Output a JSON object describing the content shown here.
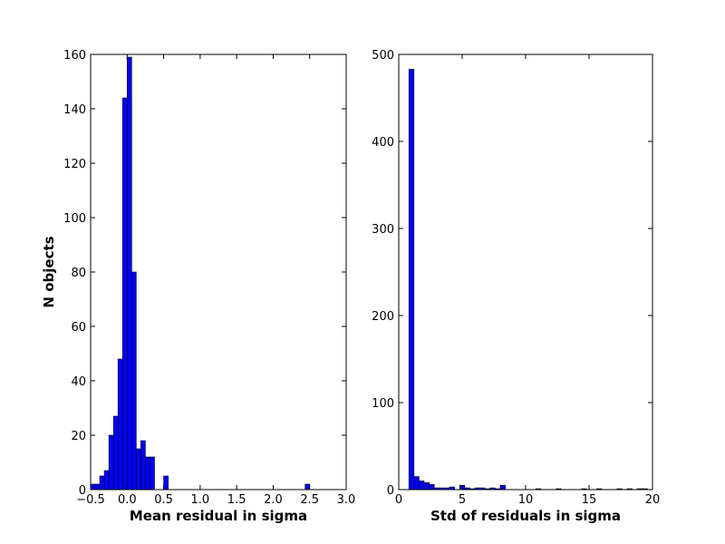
{
  "chart_data": [
    {
      "type": "bar",
      "title": "",
      "xlabel": "Mean residual in sigma",
      "ylabel": "N objects",
      "xlim": [
        -0.5,
        3.0
      ],
      "ylim": [
        0,
        160
      ],
      "xticks": [
        -0.5,
        0.0,
        0.5,
        1.0,
        1.5,
        2.0,
        2.5,
        3.0
      ],
      "xtick_labels": [
        "−0.5",
        "0.0",
        "0.5",
        "1.0",
        "1.5",
        "2.0",
        "2.5",
        "3.0"
      ],
      "yticks": [
        0,
        20,
        40,
        60,
        80,
        100,
        120,
        140,
        160
      ],
      "ytick_labels": [
        "0",
        "20",
        "40",
        "60",
        "80",
        "100",
        "120",
        "140",
        "160"
      ],
      "bin_width": 0.0625,
      "bin_starts": [
        -0.5,
        -0.4375,
        -0.375,
        -0.3125,
        -0.25,
        -0.1875,
        -0.125,
        -0.0625,
        0.0,
        0.0625,
        0.125,
        0.1875,
        0.25,
        0.3125,
        0.5,
        2.4375
      ],
      "values": [
        2,
        2,
        5,
        7,
        20,
        27,
        48,
        144,
        159,
        80,
        15,
        18,
        12,
        12,
        5,
        2
      ],
      "note_extra_bins": [],
      "bar_color": "#0000ff"
    },
    {
      "type": "bar",
      "title": "",
      "xlabel": "Std of residuals in sigma",
      "ylabel": "",
      "xlim": [
        0,
        20
      ],
      "ylim": [
        0,
        500
      ],
      "xticks": [
        0,
        5,
        10,
        15,
        20
      ],
      "xtick_labels": [
        "0",
        "5",
        "10",
        "15",
        "20"
      ],
      "yticks": [
        0,
        100,
        200,
        300,
        400,
        500
      ],
      "ytick_labels": [
        "0",
        "100",
        "200",
        "300",
        "400",
        "500"
      ],
      "bin_width": 0.4,
      "bin_starts": [
        0.4,
        0.8,
        1.2,
        1.6,
        2.0,
        2.4,
        2.8,
        3.2,
        3.6,
        4.0,
        4.8,
        5.2,
        5.6,
        6.0,
        6.4,
        6.8,
        7.2,
        7.6,
        8.0,
        10.8,
        12.4,
        14.4,
        15.6,
        17.2,
        18.0,
        18.8,
        19.2
      ],
      "values": [
        0,
        483,
        15,
        10,
        8,
        6,
        2,
        2,
        2,
        3,
        5,
        2,
        1,
        2,
        2,
        1,
        2,
        1,
        5,
        1,
        1,
        1,
        1,
        1,
        1,
        1,
        1
      ],
      "bar_color": "#0000ff"
    }
  ]
}
